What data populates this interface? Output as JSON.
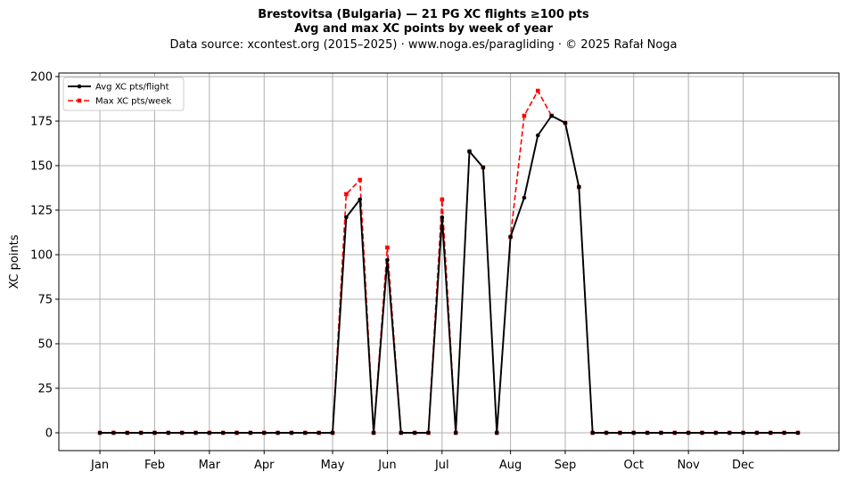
{
  "title": {
    "line1": "Brestovitsa (Bulgaria)  —  21 PG XC flights ≥100 pts",
    "line2": "Avg and max XC points by week of year",
    "line3": "Data source: xcontest.org (2015–2025)  ·  www.noga.es/paragliding  ·  © 2025 Rafał Noga"
  },
  "chart_data": {
    "type": "line",
    "ylabel": "XC points",
    "xlabel": "",
    "xlim": [
      -3,
      54
    ],
    "ylim": [
      -10,
      202
    ],
    "grid": true,
    "legend_position": "top-left",
    "x_ticks": [
      {
        "x": 0,
        "label": "Jan"
      },
      {
        "x": 4,
        "label": "Feb"
      },
      {
        "x": 8,
        "label": "Mar"
      },
      {
        "x": 12,
        "label": "Apr"
      },
      {
        "x": 17,
        "label": "May"
      },
      {
        "x": 21,
        "label": "Jun"
      },
      {
        "x": 25,
        "label": "Jul"
      },
      {
        "x": 30,
        "label": "Aug"
      },
      {
        "x": 34,
        "label": "Sep"
      },
      {
        "x": 39,
        "label": "Oct"
      },
      {
        "x": 43,
        "label": "Nov"
      },
      {
        "x": 47,
        "label": "Dec"
      }
    ],
    "y_ticks": [
      0,
      25,
      50,
      75,
      100,
      125,
      150,
      175,
      200
    ],
    "x": [
      0,
      1,
      2,
      3,
      4,
      5,
      6,
      7,
      8,
      9,
      10,
      11,
      12,
      13,
      14,
      15,
      16,
      17,
      18,
      19,
      20,
      21,
      22,
      23,
      24,
      25,
      26,
      27,
      28,
      29,
      30,
      31,
      32,
      33,
      34,
      35,
      36,
      37,
      38,
      39,
      40,
      41,
      42,
      43,
      44,
      45,
      46,
      47,
      48,
      49,
      50,
      51
    ],
    "series": [
      {
        "name": "Avg XC pts/flight",
        "color": "#000000",
        "style": "solid-circle",
        "values": [
          0,
          0,
          0,
          0,
          0,
          0,
          0,
          0,
          0,
          0,
          0,
          0,
          0,
          0,
          0,
          0,
          0,
          0,
          121,
          131,
          0,
          97,
          0,
          0,
          0,
          121,
          0,
          158,
          149,
          0,
          110,
          132,
          167,
          178,
          174,
          138,
          0,
          0,
          0,
          0,
          0,
          0,
          0,
          0,
          0,
          0,
          0,
          0,
          0,
          0,
          0,
          0
        ]
      },
      {
        "name": "Max XC pts/week",
        "color": "#ff0000",
        "style": "dashed-square",
        "values": [
          0,
          0,
          0,
          0,
          0,
          0,
          0,
          0,
          0,
          0,
          0,
          0,
          0,
          0,
          0,
          0,
          0,
          0,
          134,
          142,
          0,
          104,
          0,
          0,
          0,
          131,
          0,
          158,
          149,
          0,
          110,
          178,
          192,
          178,
          174,
          138,
          0,
          0,
          0,
          0,
          0,
          0,
          0,
          0,
          0,
          0,
          0,
          0,
          0,
          0,
          0,
          0
        ]
      }
    ]
  }
}
